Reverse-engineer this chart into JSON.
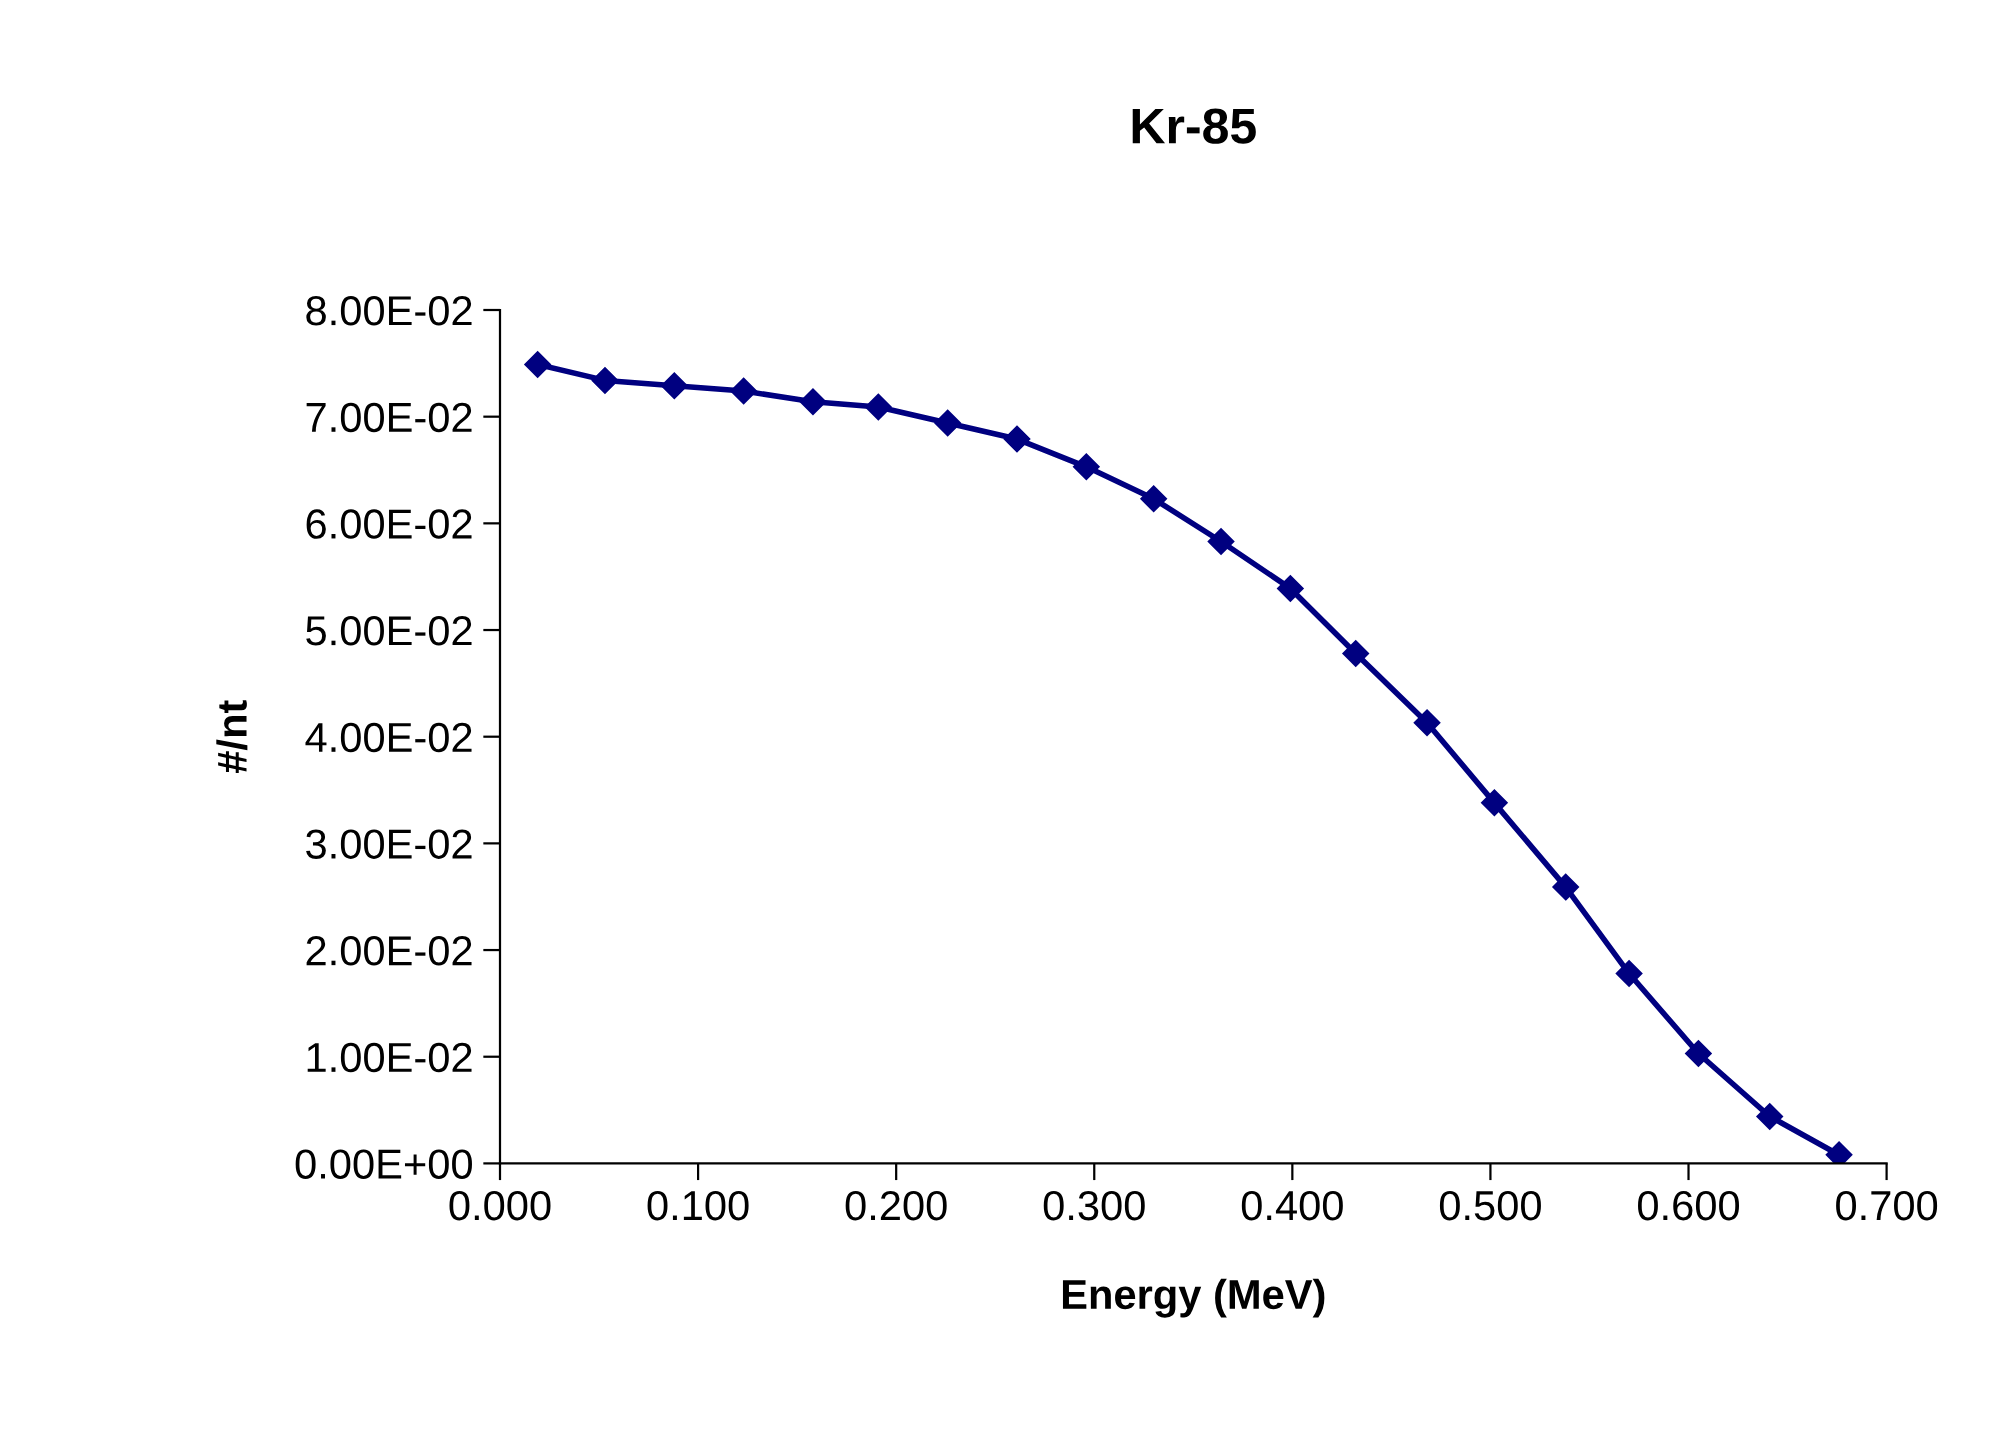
{
  "chart_data": {
    "type": "line",
    "title": "Kr-85",
    "xlabel": "Energy (MeV)",
    "ylabel": "#/nt",
    "x": [
      0.019,
      0.053,
      0.088,
      0.123,
      0.158,
      0.191,
      0.226,
      0.261,
      0.296,
      0.33,
      0.364,
      0.399,
      0.432,
      0.468,
      0.502,
      0.538,
      0.57,
      0.605,
      0.641,
      0.676
    ],
    "series": [
      {
        "color": "#000080",
        "values": [
          0.0749,
          0.0734,
          0.0729,
          0.0724,
          0.0714,
          0.0709,
          0.0694,
          0.0679,
          0.0653,
          0.0623,
          0.0583,
          0.0539,
          0.0478,
          0.0413,
          0.0338,
          0.0259,
          0.0178,
          0.0103,
          0.0044,
          0.0008
        ]
      }
    ],
    "xlim": [
      0,
      0.7
    ],
    "ylim": [
      0,
      0.08
    ],
    "xticks": [
      {
        "value": 0,
        "label": "0.000"
      },
      {
        "value": 0.1,
        "label": "0.100"
      },
      {
        "value": 0.2,
        "label": "0.200"
      },
      {
        "value": 0.3,
        "label": "0.300"
      },
      {
        "value": 0.4,
        "label": "0.400"
      },
      {
        "value": 0.5,
        "label": "0.500"
      },
      {
        "value": 0.6,
        "label": "0.600"
      },
      {
        "value": 0.7,
        "label": "0.700"
      }
    ],
    "yticks": [
      {
        "value": 0,
        "label": "0.00E+00"
      },
      {
        "value": 0.01,
        "label": "1.00E-02"
      },
      {
        "value": 0.02,
        "label": "2.00E-02"
      },
      {
        "value": 0.03,
        "label": "3.00E-02"
      },
      {
        "value": 0.04,
        "label": "4.00E-02"
      },
      {
        "value": 0.05,
        "label": "5.00E-02"
      },
      {
        "value": 0.06,
        "label": "6.00E-02"
      },
      {
        "value": 0.07,
        "label": "7.00E-02"
      },
      {
        "value": 0.08,
        "label": "8.00E-02"
      }
    ],
    "grid": false,
    "legend": false,
    "marker": "diamond",
    "line_style": "solid"
  }
}
